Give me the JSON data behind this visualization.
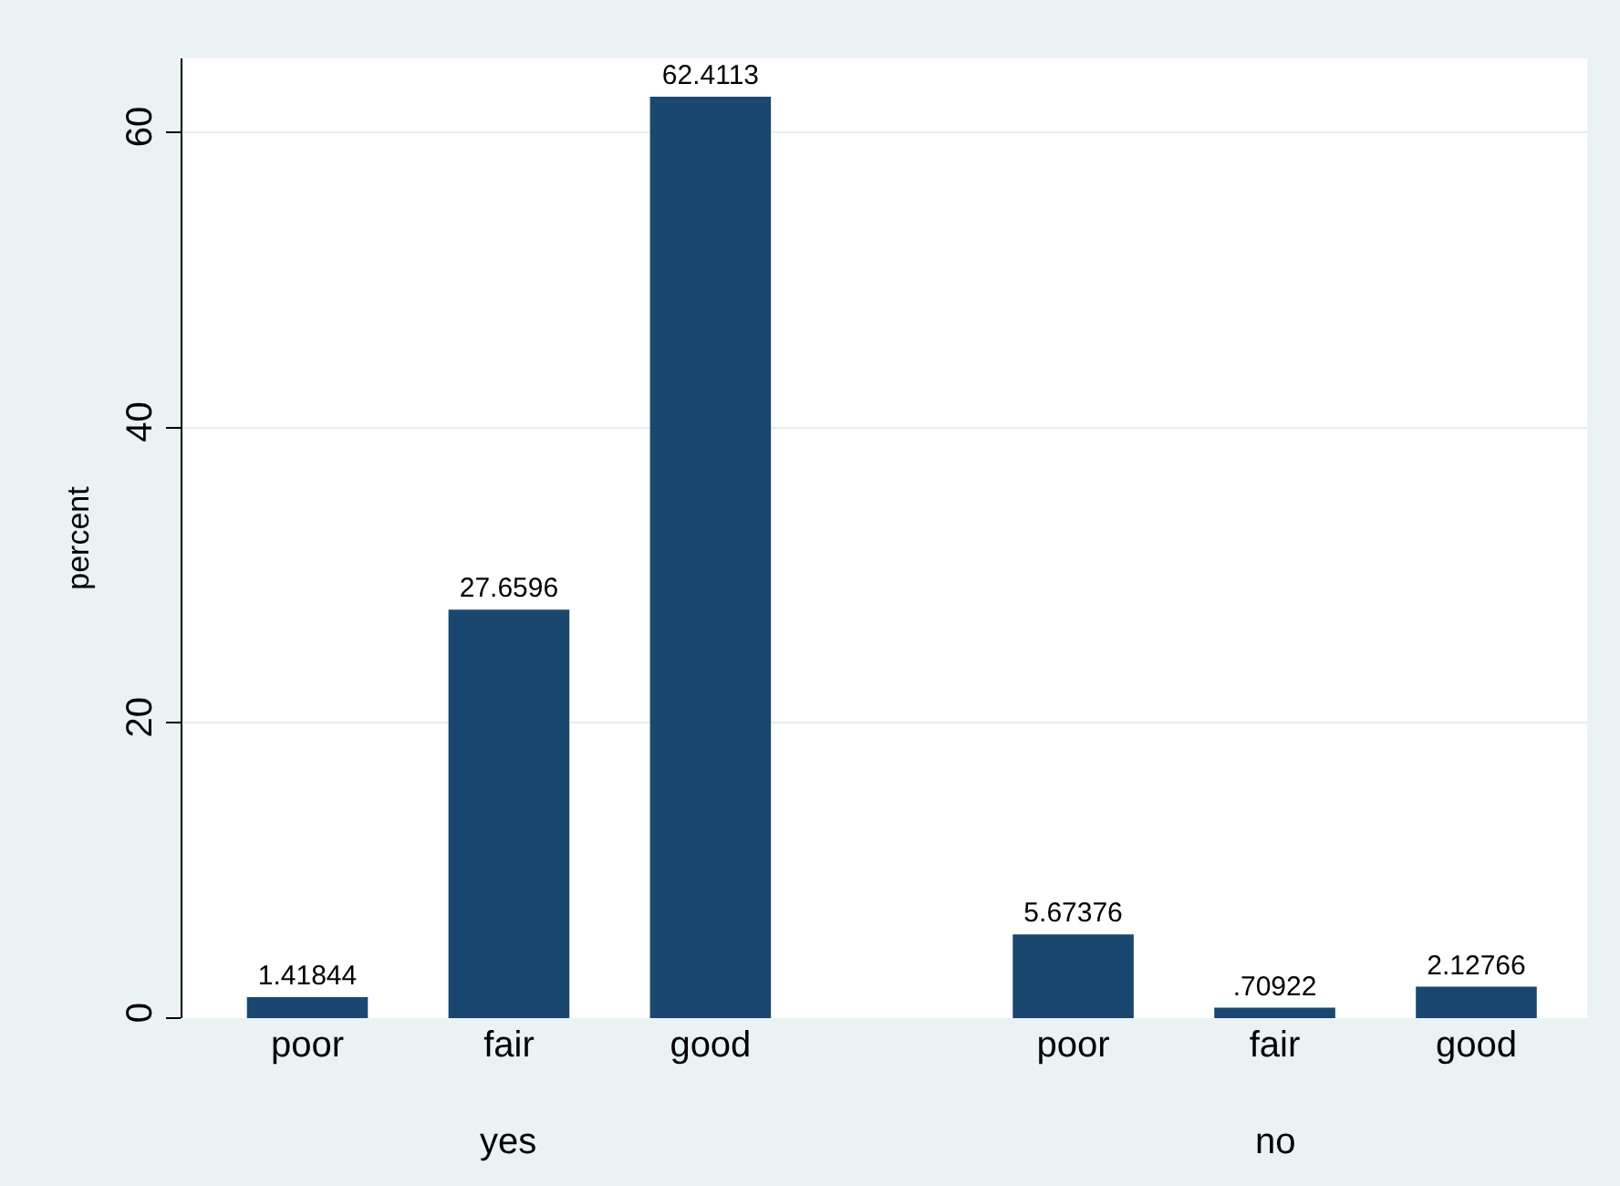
{
  "chart_data": {
    "type": "bar",
    "ylabel": "percent",
    "categories": [
      "poor",
      "fair",
      "good",
      "poor",
      "fair",
      "good"
    ],
    "values": [
      1.41844,
      27.6596,
      62.4113,
      5.67376,
      0.70922,
      2.12766
    ],
    "value_labels": [
      "1.41844",
      "27.6596",
      "62.4113",
      "5.67376",
      ".70922",
      "2.12766"
    ],
    "color": "#1a476f",
    "annotations": [
      "yes",
      "no"
    ],
    "ylim": [
      0,
      65
    ],
    "yticks": [
      0,
      20,
      40,
      60
    ],
    "grid": "y"
  }
}
